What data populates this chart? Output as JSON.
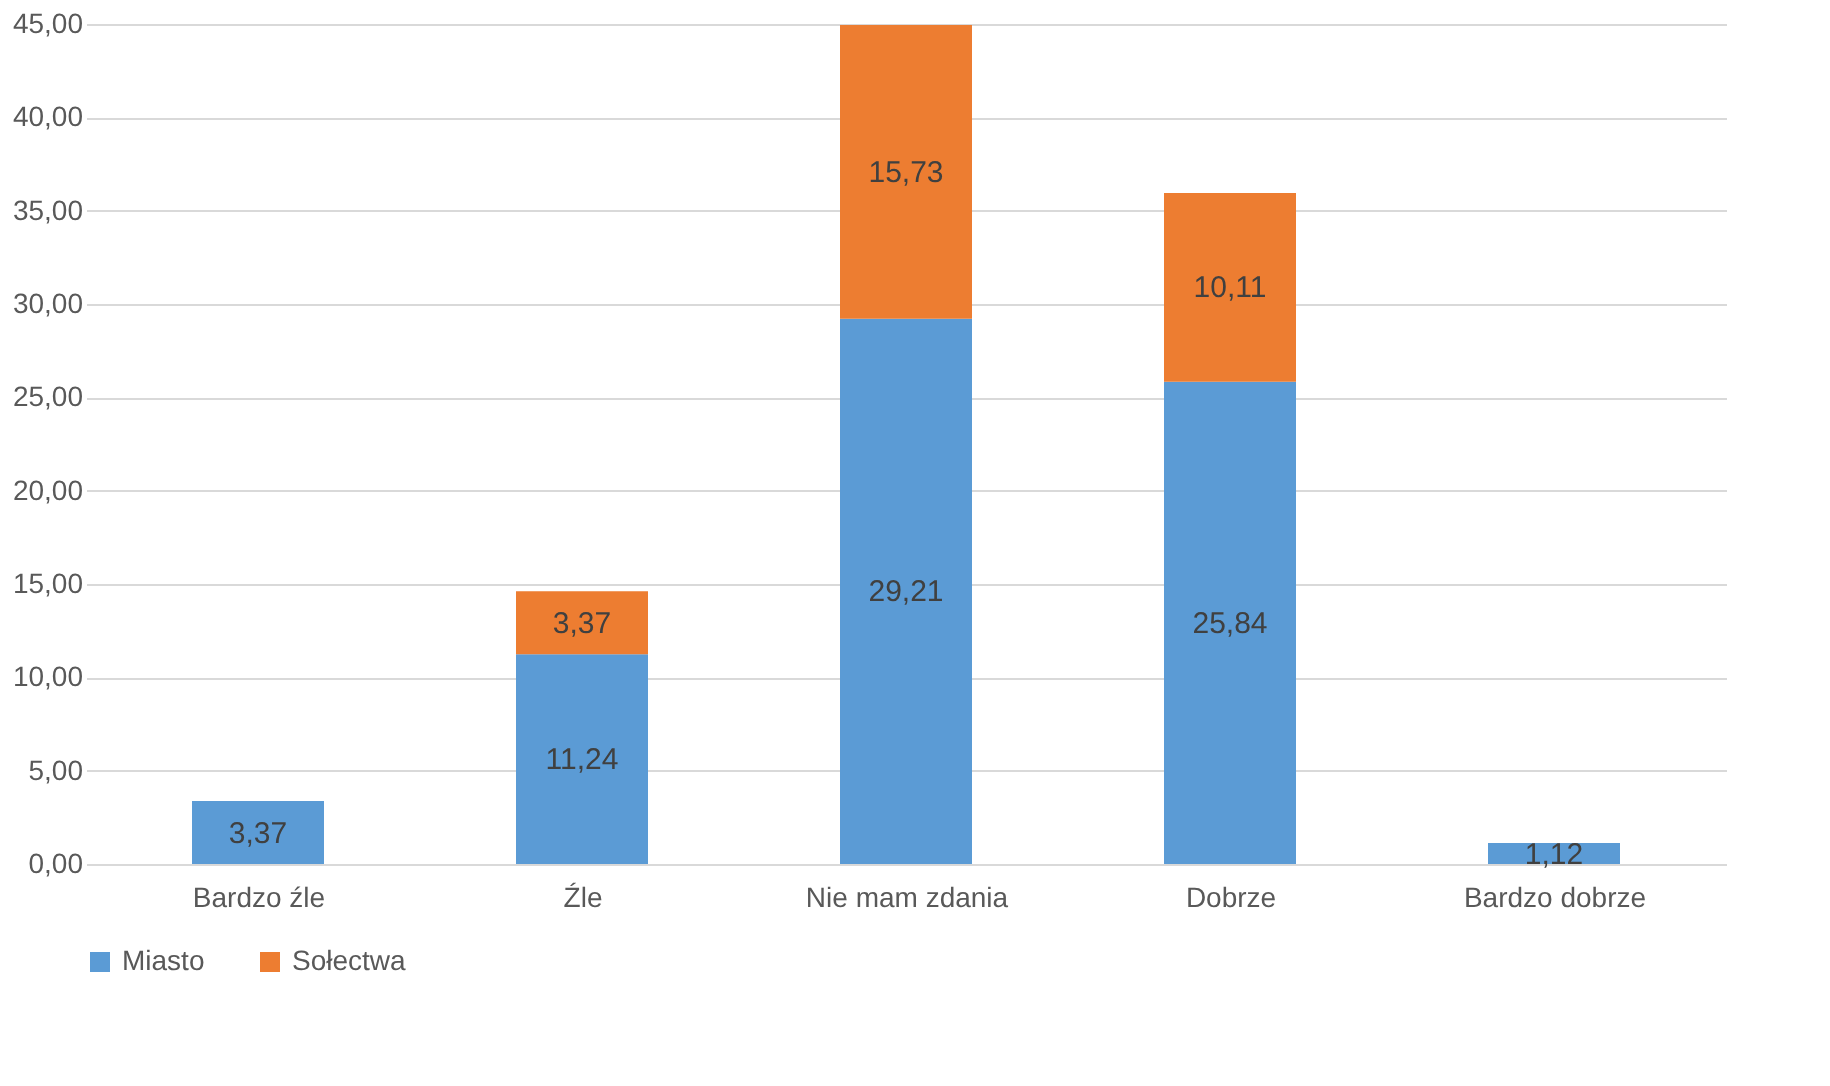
{
  "chart_data": {
    "type": "bar",
    "stacked": true,
    "categories": [
      "Bardzo źle",
      "Źle",
      "Nie mam zdania",
      "Dobrze",
      "Bardzo dobrze"
    ],
    "series": [
      {
        "name": "Miasto",
        "color": "#5b9bd5",
        "values": [
          3.37,
          11.24,
          29.21,
          25.84,
          1.12
        ],
        "value_labels": [
          "3,37",
          "11,24",
          "29,21",
          "25,84",
          "1,12"
        ]
      },
      {
        "name": "Sołectwa",
        "color": "#ed7d31",
        "values": [
          null,
          3.37,
          15.73,
          10.11,
          null
        ],
        "value_labels": [
          null,
          "3,37",
          "15,73",
          "10,11",
          null
        ]
      }
    ],
    "ylim": [
      0,
      45
    ],
    "yticks": [
      {
        "value": 0,
        "label": "0,00"
      },
      {
        "value": 5,
        "label": "5,00"
      },
      {
        "value": 10,
        "label": "10,00"
      },
      {
        "value": 15,
        "label": "15,00"
      },
      {
        "value": 20,
        "label": "20,00"
      },
      {
        "value": 25,
        "label": "25,00"
      },
      {
        "value": 30,
        "label": "30,00"
      },
      {
        "value": 35,
        "label": "35,00"
      },
      {
        "value": 40,
        "label": "40,00"
      },
      {
        "value": 45,
        "label": "45,00"
      }
    ],
    "grid": "y",
    "legend": "bottom"
  }
}
